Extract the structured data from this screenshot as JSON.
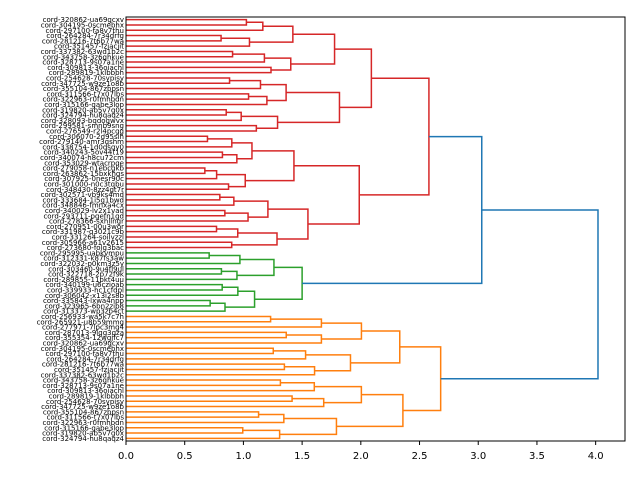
{
  "chart_data": {
    "type": "dendrogram",
    "orientation": "left",
    "title": "",
    "xlabel": "",
    "ylabel": "",
    "xlim": [
      0,
      4.25
    ],
    "xticks": [
      0.0,
      0.5,
      1.0,
      1.5,
      2.0,
      2.5,
      3.0,
      3.5,
      4.0
    ],
    "xtick_labels": [
      "0.0",
      "0.5",
      "1.0",
      "1.5",
      "2.0",
      "2.5",
      "3.0",
      "3.5",
      "4.0"
    ],
    "grid": false,
    "colors": {
      "red": "#d62728",
      "green": "#2ca02c",
      "orange": "#ff7f0e",
      "blue": "#1f77b4"
    },
    "leaf_count": 80,
    "leaf_labels_visible_sample": [
      "cord-320862-ua69gcxv",
      "cord-304195-0scmebhx",
      "cord-297100-fa8v7thu",
      "cord-264284-7r34drfg",
      "cord-281216-7t6b77wa",
      "cord-351457-fzjacjit",
      "cord-337382-63wd1b2c",
      "cord-343758-3z6qhkue",
      "cord-328713-9s07a1ne",
      "cord-309813-36oiachl",
      "cord-289819-1klbbbh",
      "cord-254628-70sypisy",
      "cord-347725-w9ze1o8b",
      "cord-355104-867zbpsn",
      "cord-311566-t7x07lbs",
      "cord-322963-r0fmhbdn",
      "cord-315166-gabe3lop",
      "cord-319820-ab5v7g0x",
      "cord-324794-hu8qaqz4",
      "cord-328093-bqdogwvx",
      "cord-299581-smnb9sng",
      "cord-276549-r2l4pcgg",
      "cord-306070-2d95sih",
      "cord-279140-amr3qshm",
      "cord-338754-1d0dsqy0",
      "cord-340243-5ov44t19",
      "cord-340074-h8cu72cm",
      "cord-353029-wtacrpqe",
      "cord-279058-n1ebcgkb",
      "cord-263862-15bxkhqs",
      "cord-307925-0nesr90c",
      "cord-301000-n0c3tqbu",
      "cord-348430-8zz4gt7r",
      "cord-302571-vb9ks4md",
      "cord-333684-1i5g1bwd",
      "cord-348846-fmnxa4cx",
      "cord-340029-lv2x1vad",
      "cord-293711-pgefn1gd",
      "cord-278366-sxhllngr",
      "cord-270951-00u3wor",
      "cord-331987-q3021c9b",
      "cord-331264-soilvzzl",
      "cord-305966-a61v2615",
      "cord-273680-folg3bac",
      "cord-295995-uabkvmpu",
      "cord-312331-k87fs3aw",
      "cord-322032-p0km3z5y",
      "cord-303460-9u4fl9ul",
      "cord-322718-2p72f9k",
      "cord-289855-11pkt4uu",
      "cord-340199-u6czioab",
      "cord-339933-hc1cfdpl",
      "cord-306042-x13i2s8b",
      "cord-335843-lxwa4npp",
      "cord-323965-6bn2zib8",
      "cord-313373-wp3zb4ct",
      "cord-256933-wa5k7c7h",
      "cord-265921-u8b59mmg",
      "cord-277971-7lpc3mg4",
      "cord-287013-9lgg3gza",
      "cord-355354-12wgjfc7"
    ],
    "clusters": [
      {
        "name": "red",
        "color": "#d62728",
        "leaves": 44,
        "root_height": 2.58,
        "sub_merges": [
          {
            "height": 2.02,
            "children_heights": [
              1.73,
              1.55
            ]
          },
          {
            "height": 1.73,
            "children_heights": [
              1.48,
              1.3
            ]
          },
          {
            "height": 2.07,
            "children_heights": [
              1.65,
              1.55
            ]
          },
          {
            "height": 1.22,
            "children_heights": [
              1.02,
              1.27
            ]
          },
          {
            "height": 1.38,
            "children_heights": [
              1.17,
              1.32
            ]
          },
          {
            "height": 1.64,
            "children_heights": [
              1.5,
              1.4
            ]
          },
          {
            "height": 1.55,
            "children_heights": [
              1.16,
              0.71
            ]
          }
        ]
      },
      {
        "name": "green",
        "color": "#2ca02c",
        "leaves": 12,
        "root_height": 1.5,
        "sub_merges": [
          {
            "height": 1.4,
            "children_heights": [
              1.28,
              1.23
            ]
          },
          {
            "height": 1.12,
            "children_heights": [
              0.96,
              0.93
            ]
          }
        ]
      },
      {
        "name": "orange",
        "color": "#ff7f0e",
        "leaves": 24,
        "root_height": 2.68,
        "sub_merges": [
          {
            "height": 2.21,
            "children_heights": [
              1.75,
              1.72
            ]
          },
          {
            "height": 1.75,
            "children_heights": [
              1.41,
              1.08
            ]
          },
          {
            "height": 1.72,
            "children_heights": [
              1.5,
              1.46
            ]
          },
          {
            "height": 2.07,
            "children_heights": [
              1.51,
              1.41
            ]
          },
          {
            "height": 1.51,
            "children_heights": [
              1.42,
              1.05
            ]
          },
          {
            "height": 1.41,
            "children_heights": [
              0.52,
              0.78
            ]
          }
        ]
      }
    ],
    "top_links": [
      {
        "color": "#1f77b4",
        "height": 3.03,
        "joins": [
          "red",
          "green"
        ]
      },
      {
        "color": "#1f77b4",
        "height": 4.02,
        "joins": [
          "red+green",
          "orange"
        ]
      }
    ]
  }
}
